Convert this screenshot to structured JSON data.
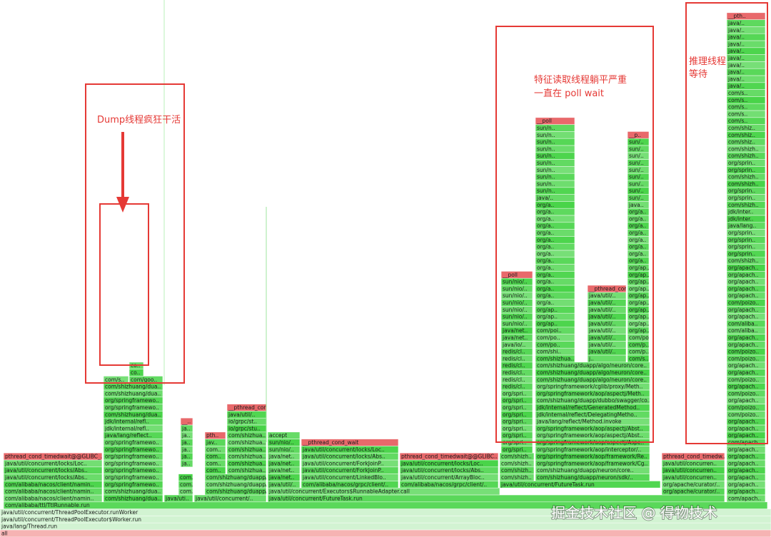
{
  "frames": [
    "all",
    "java/lang/Thread.run",
    "java/util/concurrent/ThreadPoolExecutor$Worker.run",
    "java/util/concurrent/ThreadPoolExecutor.runWorker",
    "com/alibaba/ttl/TtlRunnable.run",
    "com/alibaba/nacos/client/namin..",
    "com/alibaba/nacos/client/namin..",
    "com/alibaba/nacos/client/namin..",
    "java/util/concurrent/locks/Abs..",
    "java/util/concurrent/locks/Abs..",
    "java/util/concurrent/locks/Loc..",
    "pthread_cond_timedwait@@GLIBC_..",
    "com/shizhuang/dua..",
    "com/shizhuang/dua..",
    "org/springframewo..",
    "org/springframewo..",
    "org/springframewo..",
    "org/springframewo..",
    "org/springframewo..",
    "org/springframewo..",
    "org/springframewo..",
    "java/lang/reflect..",
    "jdk/internal/refl..",
    "jdk/internal/refl..",
    "com/shizhuang/dua..",
    "org/springframewo..",
    "org/springframewo..",
    "com/shizhuang/dua..",
    "com/shizhuang/dua..",
    "com/s..",
    "com/goo..",
    "co..",
    "co..",
    "java/uti..",
    "com..",
    "com..",
    "com..",
    "ja..",
    "ja..",
    "ja..",
    "ja..",
    "ja..",
    "ja..",
    "__..",
    "java/util/concurrent/..",
    "com/shizhuang/duapp/a..",
    "com/shizhuang/duapp/a..",
    "com/shizhuang/duapp/a..",
    "com..",
    "com..",
    "com..",
    "com..",
    "jav..",
    "pth..",
    "com/shizhua..",
    "com/shizhua..",
    "com/shizhua..",
    "com/shizhua..",
    "com/shizhua..",
    "com/shizhua..",
    "io/grpc/stu..",
    "io/grpc/st..",
    "java/util/..",
    "__pthread_cond_wait",
    "java/util/concurrent/FutureTask.run",
    "java/util/concurrent/Executors$RunnableAdapter.call",
    "java/util/..",
    "java/net..",
    "java/net..",
    "java/net..",
    "java/net..",
    "sun/nio/..",
    "sun/nio/..",
    "accept",
    "com/alibaba/nacos/grpc/client/..",
    "java/util/concurrent/LinkedBlo..",
    "java/util/concurrent/ForkJoinP..",
    "java/util/concurrent/ForkJoinP..",
    "java/util/concurrent/locks/Abs..",
    "java/util/concurrent/locks/Loc..",
    "__pthread_cond_wait",
    "com/alibaba/nacos/grpc/client/..",
    "java/util/concurrent/ArrayBloc..",
    "java/util/concurrent/locks/Abs..",
    "java/util/concurrent/locks/Loc..",
    "pthread_cond_timedwait@@GLIBC..",
    "java/util/concurrent/FutureTask.run",
    "com/shizh..",
    "com/shizh..",
    "com/shizh..",
    "com/shizh..",
    "org/spri..",
    "org/spri..",
    "org/spri..",
    "org/spri..",
    "org/spri..",
    "org/spri..",
    "org/spri..",
    "org/spri..",
    "org/spri..",
    "redis/cl..",
    "redis/cl..",
    "redis/cl..",
    "redis/cl..",
    "redis/cl..",
    "redis/cl..",
    "java/io/..",
    "java/net..",
    "java/net..",
    "sun/nio/..",
    "sun/nio/..",
    "sun/nio/..",
    "sun/nio/..",
    "sun/nio/..",
    "sun/nio/..",
    "sun/nio/..",
    "__poll",
    "com/shizhuang/duapp/neuron/sdk/..",
    "com/shizhuang/duapp/neuron/core..",
    "org/springframework/aop/framework/Cg..",
    "org/springframework/aop/framework/Re..",
    "org/springframework/aop/interceptor/..",
    "org/springframework/aop/aspectj/Aspe..",
    "org/springframework/aop/aspectj/Abst..",
    "org/springframework/aop/aspectj/Abst..",
    "java/lang/reflect/Method.invoke",
    "jdk/internal/reflect/DelegatingMetho..",
    "jdk/internal/reflect/GeneratedMethod..",
    "com/shizhuang/duapp/dubbo/swagger/co..",
    "org/springframework/aop/aspectj/Meth..",
    "org/springframework/cglib/proxy/Meth..",
    "com/shizhuang/duapp/algo/neuron/core..",
    "com/shizhuang/duapp/algo/neuron/core..",
    "com/shizhuang/duapp/algo/neuron/core..",
    "com/shizhua..",
    "com/shi..",
    "com/po..",
    "com/po..",
    "com/poi..",
    "org/ap..",
    "org/ap..",
    "org/ap..",
    "org/a..",
    "org/a..",
    "org/a..",
    "org/a..",
    "org/a..",
    "org/a..",
    "org/a..",
    "org/a..",
    "org/a..",
    "org/a..",
    "org/a..",
    "org/a..",
    "org/a..",
    "org/a..",
    "org/a..",
    "java/..",
    "sun/n..",
    "sun/n..",
    "sun/n..",
    "sun/n..",
    "sun/n..",
    "sun/n..",
    "sun/n..",
    "sun/n..",
    "sun/n..",
    "sun/n..",
    "__poll",
    "j..",
    "java/util/..",
    "java/util/..",
    "java/util/..",
    "java/util/..",
    "java/util/..",
    "java/util/..",
    "java/util/..",
    "java/util/..",
    "java/util/..",
    "__pthread_cond..",
    "com/s..",
    "com/p..",
    "com/p..",
    "com/poi..",
    "org/ap..",
    "org/ap..",
    "org/ap..",
    "org/ap..",
    "org/ap..",
    "org/ap..",
    "org/ap..",
    "org/ap..",
    "org/ap..",
    "org/ap..",
    "org/a..",
    "org/a..",
    "org/a..",
    "org/a..",
    "org/a..",
    "org/a..",
    "org/a..",
    "org/a..",
    "java..",
    "sun/..",
    "sun/..",
    "sun/..",
    "sun/..",
    "sun/..",
    "sun/..",
    "sun/..",
    "sun/..",
    "sun/..",
    "__p..",
    "org/apache/curator/..",
    "org/apache/curator/..",
    "java/util/concurren..",
    "java/util/concurren..",
    "java/util/concurren..",
    "pthread_cond_timedw..",
    "com/apach..",
    "org/apach..",
    "org/apach..",
    "org/apach..",
    "org/apach..",
    "org/apach..",
    "org/apach..",
    "org/apach..",
    "com/apach..",
    "org/apach..",
    "org/apach..",
    "org/apach..",
    "com/poizo..",
    "com/poizo..",
    "org/apach..",
    "com/poizo..",
    "org/apach..",
    "com/poizo..",
    "org/apach..",
    "org/apach..",
    "com/poizo..",
    "com/poizo..",
    "org/apach..",
    "org/apach..",
    "com/aliba..",
    "com/aliba..",
    "org/apach..",
    "org/apach..",
    "com/poizo..",
    "org/apach..",
    "org/apach..",
    "org/apach..",
    "org/apach..",
    "org/apach..",
    "com/shizh..",
    "org/sprin..",
    "org/sprin..",
    "org/sprin..",
    "org/sprin..",
    "java/lang..",
    "jdk/inter..",
    "jdk/inter..",
    "com/shizh..",
    "org/sprin..",
    "org/sprin..",
    "com/shizh..",
    "com/shizh..",
    "org/sprin..",
    "org/sprin..",
    "com/shizh..",
    "com/shizh..",
    "com/shiz..",
    "com/shiz..",
    "com/shiz..",
    "com/s..",
    "com/s..",
    "com/s..",
    "com/s..",
    "com/s..",
    "java/..",
    "java/..",
    "java/..",
    "java/..",
    "java/..",
    "java/..",
    "java/..",
    "java/..",
    "java/..",
    "java/..",
    "__pth.."
  ],
  "annotations": {
    "dump": "Dump线程疯狂干活",
    "feature_line1": "特征读取线程躺平严重",
    "feature_line2": "一直在 poll wait",
    "infer_line1": "推理线程",
    "infer_line2": "等待"
  },
  "watermark": "掘金技术社区 @ 得物技术"
}
